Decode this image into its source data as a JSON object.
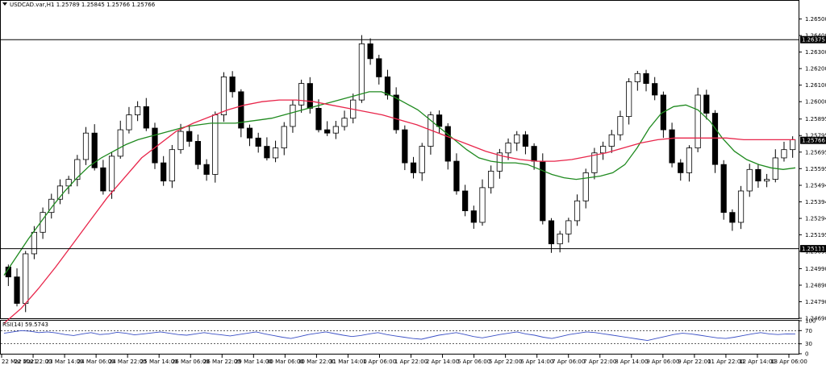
{
  "header": {
    "symbol_line": "USDCAD.var,H1  1.25789 1.25845 1.25766 1.25766"
  },
  "rsi_header": "RSI(14) 59.5743",
  "chart_data": {
    "type": "line",
    "title": "USDCAD.var,H1",
    "ohlc": {
      "open": 1.25789,
      "high": 1.25845,
      "low": 1.25766,
      "close": 1.25766
    },
    "y_axis": {
      "ylim": [
        1.2469,
        1.2661
      ],
      "ticks": [
        "1.26500",
        "1.26400",
        "1.26300",
        "1.26200",
        "1.26100",
        "1.26000",
        "1.25895",
        "1.25795",
        "1.25695",
        "1.25595",
        "1.25494",
        "1.25394",
        "1.25294",
        "1.25195",
        "1.25095",
        "1.24990",
        "1.24890",
        "1.24790",
        "1.24690"
      ]
    },
    "x_axis": {
      "ticks": [
        "22 Mar 2021",
        "22 Mar 22:00",
        "23 Mar 14:00",
        "24 Mar 06:00",
        "24 Mar 22:00",
        "25 Mar 14:00",
        "26 Mar 06:00",
        "26 Mar 22:00",
        "29 Mar 14:00",
        "30 Mar 06:00",
        "30 Mar 22:00",
        "31 Mar 14:00",
        "1 Apr 06:00",
        "1 Apr 22:00",
        "2 Apr 14:00",
        "5 Apr 06:00",
        "5 Apr 22:00",
        "6 Apr 14:00",
        "7 Apr 06:00",
        "7 Apr 22:00",
        "8 Apr 14:00",
        "9 Apr 06:00",
        "9 Apr 22:00",
        "11 Apr 22:00",
        "12 Apr 14:00",
        "13 Apr 06:00"
      ]
    },
    "horizontal_levels": [
      {
        "value": 1.26375,
        "label": "1.26375"
      },
      {
        "value": 1.25111,
        "label": "1.25111"
      }
    ],
    "current_price": {
      "value": 1.25766,
      "label": "1.25766"
    },
    "series": [
      {
        "kind": "candles",
        "color": "#000000",
        "close": [
          1.2494,
          1.2478,
          1.2508,
          1.2521,
          1.2533,
          1.2541,
          1.2549,
          1.2553,
          1.2565,
          1.2581,
          1.256,
          1.2546,
          1.2567,
          1.2583,
          1.2592,
          1.2597,
          1.2584,
          1.2563,
          1.2552,
          1.2571,
          1.2582,
          1.2576,
          1.2562,
          1.2556,
          1.2592,
          1.2615,
          1.2606,
          1.2584,
          1.2578,
          1.2573,
          1.2566,
          1.2572,
          1.2585,
          1.2598,
          1.2611,
          1.2596,
          1.2583,
          1.2581,
          1.2585,
          1.259,
          1.2601,
          1.2635,
          1.2626,
          1.2615,
          1.2604,
          1.2583,
          1.2563,
          1.2557,
          1.2573,
          1.2592,
          1.2585,
          1.2564,
          1.2546,
          1.2534,
          1.2527,
          1.2548,
          1.2558,
          1.2569,
          1.2575,
          1.258,
          1.2573,
          1.2564,
          1.2528,
          1.2514,
          1.252,
          1.2528,
          1.254,
          1.2557,
          1.2569,
          1.2573,
          1.258,
          1.2591,
          1.2612,
          1.2617,
          1.2611,
          1.2604,
          1.2583,
          1.2563,
          1.2557,
          1.2572,
          1.2604,
          1.2593,
          1.2562,
          1.2533,
          1.2527,
          1.2546,
          1.2559,
          1.2552,
          1.2553,
          1.2566,
          1.2571,
          1.2577
        ]
      },
      {
        "name": "",
        "kind": "moving-average",
        "color": "#1f8a1f",
        "values": [
          1.2495,
          1.2506,
          1.2517,
          1.2527,
          1.2537,
          1.2546,
          1.2554,
          1.2561,
          1.2566,
          1.257,
          1.2574,
          1.2577,
          1.2579,
          1.2581,
          1.2583,
          1.2585,
          1.2586,
          1.2587,
          1.2587,
          1.2587,
          1.2588,
          1.2589,
          1.259,
          1.2592,
          1.2594,
          1.2596,
          1.2598,
          1.26,
          1.2602,
          1.2604,
          1.2606,
          1.2606,
          1.2603,
          1.2599,
          1.2595,
          1.2589,
          1.2583,
          1.2577,
          1.2571,
          1.2566,
          1.2564,
          1.2563,
          1.2563,
          1.2562,
          1.2559,
          1.2556,
          1.2554,
          1.2553,
          1.2554,
          1.2555,
          1.2557,
          1.2562,
          1.2572,
          1.2584,
          1.2593,
          1.2597,
          1.2598,
          1.2595,
          1.2588,
          1.2578,
          1.257,
          1.2565,
          1.2562,
          1.256,
          1.2559,
          1.256
        ]
      },
      {
        "name": "",
        "kind": "moving-average",
        "color": "#e8254a",
        "values": [
          1.2466,
          1.2475,
          1.2487,
          1.25,
          1.2514,
          1.2528,
          1.2542,
          1.2554,
          1.2566,
          1.2574,
          1.2582,
          1.2587,
          1.2591,
          1.2595,
          1.2598,
          1.26,
          1.2601,
          1.2601,
          1.26,
          1.2598,
          1.2596,
          1.2594,
          1.2592,
          1.2589,
          1.2586,
          1.2582,
          1.2578,
          1.2574,
          1.257,
          1.2567,
          1.2565,
          1.2564,
          1.2564,
          1.2565,
          1.2567,
          1.2569,
          1.2572,
          1.2575,
          1.2577,
          1.2578,
          1.2578,
          1.2578,
          1.2578,
          1.2577,
          1.2577,
          1.2577,
          1.2577
        ]
      }
    ],
    "rsi": {
      "name": "RSI(14)",
      "value": 59.5743,
      "ylim": [
        0,
        100
      ],
      "ticks": [
        "100",
        "70",
        "30",
        "0"
      ],
      "levels": [
        70,
        30
      ],
      "color": "#3a4fc6",
      "values": [
        62,
        66,
        70,
        68,
        64,
        66,
        63,
        58,
        55,
        60,
        64,
        58,
        60,
        65,
        62,
        57,
        60,
        63,
        66,
        62,
        58,
        56,
        60,
        64,
        60,
        57,
        54,
        58,
        62,
        66,
        60,
        55,
        50,
        46,
        52,
        58,
        62,
        66,
        61,
        56,
        52,
        55,
        60,
        64,
        58,
        54,
        50,
        46,
        44,
        50,
        56,
        60,
        64,
        58,
        52,
        48,
        53,
        58,
        62,
        66,
        60,
        56,
        50,
        46,
        52,
        58,
        62,
        66,
        64,
        60,
        56,
        52,
        48,
        44,
        40,
        46,
        52,
        58,
        62,
        60,
        56,
        52,
        48,
        46,
        50,
        55,
        60,
        64,
        60,
        58,
        60,
        59.5743
      ]
    }
  }
}
